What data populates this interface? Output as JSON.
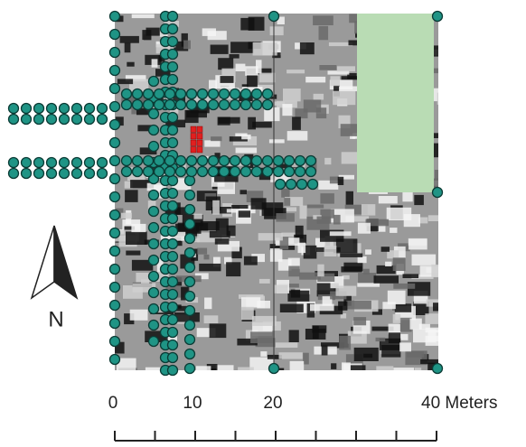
{
  "north_arrow": {
    "label": "N"
  },
  "scale_bar": {
    "labels": [
      "0",
      "10",
      "20",
      "40 Meters"
    ]
  }
}
